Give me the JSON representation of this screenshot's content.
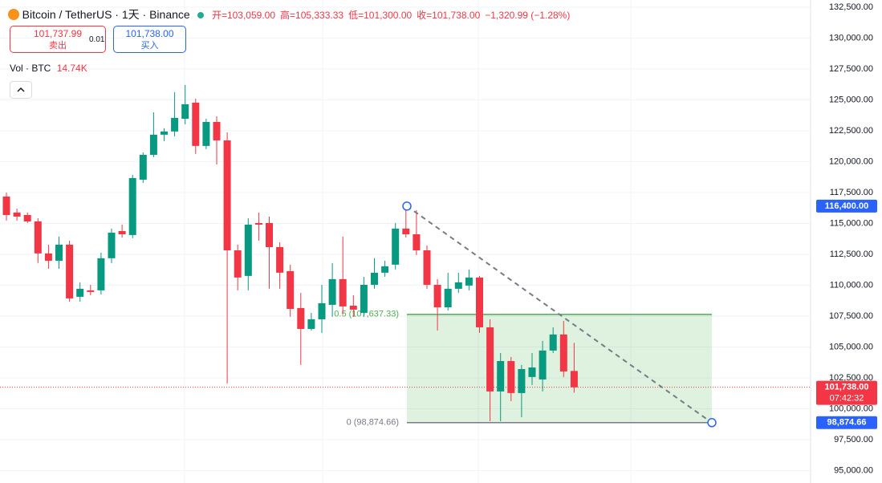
{
  "header": {
    "symbol": "Bitcoin / TetherUS · 1天 · Binance",
    "ohlc": [
      "开=103,059.00",
      "高=105,333.33",
      "低=101,300.00",
      "收=101,738.00",
      "−1,320.99 (−1.28%)"
    ],
    "sell": {
      "price": "101,737.99",
      "label": "卖出"
    },
    "spread": "0.01",
    "buy": {
      "price": "101,738.00",
      "label": "买入"
    },
    "volume": {
      "label": "Vol · BTC",
      "value": "14.74K"
    }
  },
  "chart_data": {
    "type": "candlestick",
    "open": [
      117175,
      115880,
      115680,
      115160,
      112570,
      111980,
      113280,
      109060,
      109580,
      109580,
      112180,
      114380,
      114060,
      118540,
      120550,
      122180,
      122440,
      123470,
      124770,
      121270,
      123210,
      121720,
      112820,
      110750,
      115030,
      115030,
      113080,
      111140,
      108150,
      106460,
      107240,
      108410,
      110490,
      108340,
      107760,
      110030,
      111010,
      111660,
      114580,
      114120,
      112820,
      110030,
      108210,
      109710,
      109970,
      110620,
      106590,
      101400,
      103860,
      101270,
      102570,
      102370,
      104710,
      106010,
      103059
    ],
    "high": [
      117500,
      116200,
      115880,
      115420,
      113280,
      113930,
      113600,
      110230,
      110030,
      112630,
      114580,
      114900,
      118930,
      120750,
      123990,
      122700,
      125620,
      126200,
      125100,
      123470,
      123670,
      122370,
      113280,
      115420,
      115880,
      115550,
      113470,
      111660,
      109380,
      107760,
      110030,
      111790,
      113930,
      109190,
      110680,
      112180,
      111980,
      115030,
      116200,
      116070,
      113210,
      110490,
      111010,
      111010,
      111270,
      110750,
      107240,
      104510,
      104190,
      103540,
      104510,
      105490,
      106590,
      107110,
      105333.33
    ],
    "low": [
      115230,
      115230,
      115030,
      111790,
      111330,
      111330,
      108670,
      108670,
      109190,
      109250,
      111790,
      113860,
      113800,
      118280,
      120360,
      121660,
      122050,
      123020,
      120620,
      121010,
      119770,
      102050,
      109580,
      109580,
      113600,
      109710,
      109710,
      107440,
      103540,
      106330,
      106140,
      107440,
      107630,
      107440,
      107440,
      109710,
      110680,
      111270,
      113860,
      112440,
      109710,
      106330,
      107950,
      109380,
      109580,
      106140,
      98990,
      98990,
      100620,
      99320,
      101920,
      101400,
      104510,
      102570,
      101300
    ],
    "close": [
      115680,
      115550,
      115160,
      112570,
      111980,
      113280,
      108930,
      109710,
      109450,
      112180,
      114250,
      114120,
      118670,
      120550,
      122180,
      122440,
      123540,
      124640,
      121270,
      123210,
      121720,
      112820,
      110620,
      114900,
      114900,
      113080,
      111010,
      108080,
      106460,
      107240,
      108540,
      110490,
      108280,
      108020,
      110030,
      111010,
      111530,
      114580,
      114120,
      112820,
      110030,
      108210,
      109710,
      110230,
      110620,
      106590,
      101400,
      103860,
      101270,
      103210,
      103340,
      104710,
      106010,
      103020,
      101738
    ],
    "up_color": "#089981",
    "down_color": "#f23645",
    "ylim": [
      93990,
      133080
    ],
    "yticks": [
      {
        "value": 132500,
        "label": "132,500.00"
      },
      {
        "value": 130000,
        "label": "130,000.00"
      },
      {
        "value": 127500,
        "label": "127,500.00"
      },
      {
        "value": 125000,
        "label": "125,000.00"
      },
      {
        "value": 122500,
        "label": "122,500.00"
      },
      {
        "value": 120000,
        "label": "120,000.00"
      },
      {
        "value": 117500,
        "label": "117,500.00"
      },
      {
        "value": 115000,
        "label": "115,000.00"
      },
      {
        "value": 112500,
        "label": "112,500.00"
      },
      {
        "value": 110000,
        "label": "110,000.00"
      },
      {
        "value": 107500,
        "label": "107,500.00"
      },
      {
        "value": 105000,
        "label": "105,000.00"
      },
      {
        "value": 102500,
        "label": "102,500.00"
      },
      {
        "value": 100000,
        "label": "100,000.00"
      },
      {
        "value": 97500,
        "label": "97,500.00"
      },
      {
        "value": 95000,
        "label": "95,000.00"
      }
    ],
    "grid": true,
    "last_price": {
      "value": 101738,
      "label": "101,738.00",
      "countdown": "07:42:32"
    },
    "trendline": {
      "start": {
        "value": 116400,
        "label": "116,400.00"
      },
      "end": {
        "value": 98874.66,
        "label": "98,874.66"
      }
    },
    "fib": [
      {
        "value": 107637.33,
        "label": "0.5 (107,637.33)"
      },
      {
        "value": 98874.66,
        "label": "0 (98,874.66)"
      }
    ]
  }
}
